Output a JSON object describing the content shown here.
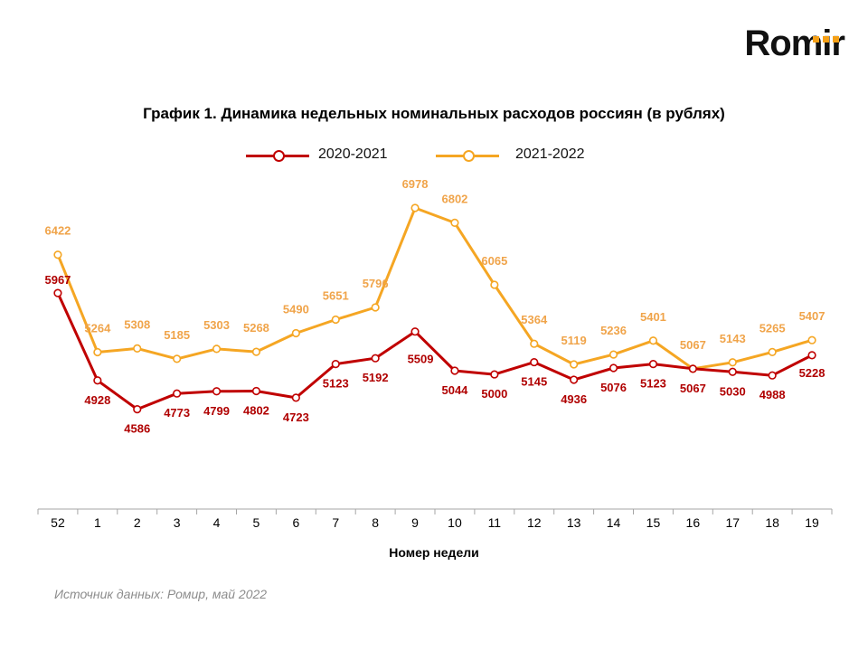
{
  "brand": {
    "name": "Romir",
    "dot_color": "#f5a016"
  },
  "chart_data": {
    "type": "line",
    "title": "График 1. Динамика недельных номинальных расходов россиян (в рублях)",
    "xlabel": "Номер недели",
    "ylabel": "",
    "categories": [
      "52",
      "1",
      "2",
      "3",
      "4",
      "5",
      "6",
      "7",
      "8",
      "9",
      "10",
      "11",
      "12",
      "13",
      "14",
      "15",
      "16",
      "17",
      "18",
      "19"
    ],
    "ylim": [
      3400,
      7300
    ],
    "grid": false,
    "legend_position": "top-center",
    "series": [
      {
        "name": "2020-2021",
        "color": "#c00000",
        "values": [
          5967,
          4928,
          4586,
          4773,
          4799,
          4802,
          4723,
          5123,
          5192,
          5509,
          5044,
          5000,
          5145,
          4936,
          5076,
          5123,
          5067,
          5030,
          4988,
          5228
        ]
      },
      {
        "name": "2021-2022",
        "color": "#f5a623",
        "values": [
          6422,
          5264,
          5308,
          5185,
          5303,
          5268,
          5490,
          5651,
          5796,
          6978,
          6802,
          6065,
          5364,
          5119,
          5236,
          5401,
          5067,
          5143,
          5265,
          5407
        ]
      }
    ]
  },
  "source": "Источник данных: Ромир, май 2022"
}
